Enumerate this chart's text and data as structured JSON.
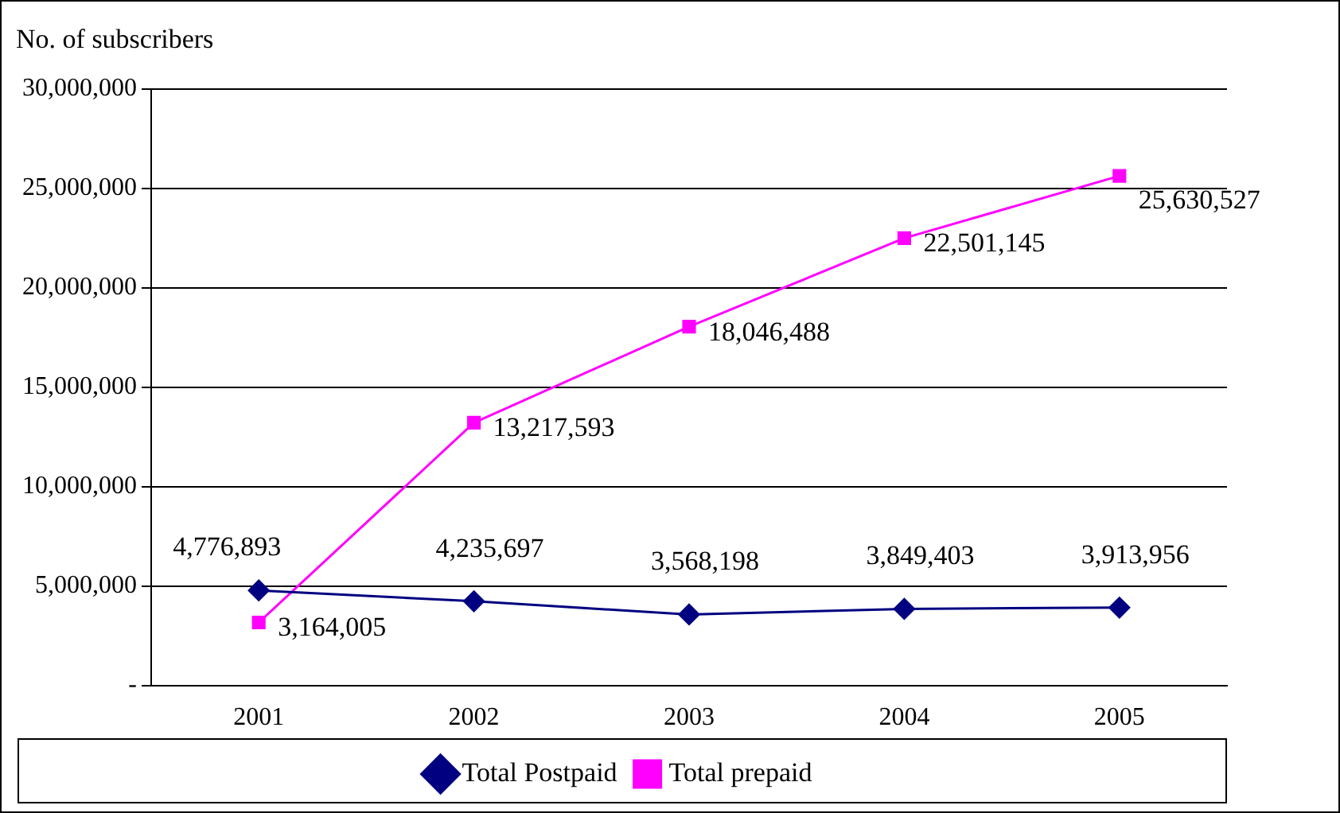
{
  "chart_data": {
    "type": "line",
    "ylabel": "No. of subscribers",
    "categories": [
      "2001",
      "2002",
      "2003",
      "2004",
      "2005"
    ],
    "series": [
      {
        "name": "Total Postpaid",
        "color": "#000080",
        "marker": "diamond",
        "values": [
          4776893,
          4235697,
          3568198,
          3849403,
          3913956
        ],
        "value_labels": [
          "4,776,893",
          "4,235,697",
          "3,568,198",
          "3,849,403",
          "3,913,956"
        ]
      },
      {
        "name": "Total prepaid",
        "color": "#ff00ff",
        "marker": "square",
        "values": [
          3164005,
          13217593,
          18046488,
          22501145,
          25630527
        ],
        "value_labels": [
          "3,164,005",
          "13,217,593",
          "18,046,488",
          "22,501,145",
          "25,630,527"
        ]
      }
    ],
    "ylim": [
      0,
      30000000
    ],
    "yticks": [
      {
        "value": 0,
        "label": "-"
      },
      {
        "value": 5000000,
        "label": "5,000,000"
      },
      {
        "value": 10000000,
        "label": "10,000,000"
      },
      {
        "value": 15000000,
        "label": "15,000,000"
      },
      {
        "value": 20000000,
        "label": "20,000,000"
      },
      {
        "value": 25000000,
        "label": "25,000,000"
      },
      {
        "value": 30000000,
        "label": "30,000,000"
      }
    ],
    "grid": "y",
    "legend": "bottom",
    "line_style": "solid"
  }
}
